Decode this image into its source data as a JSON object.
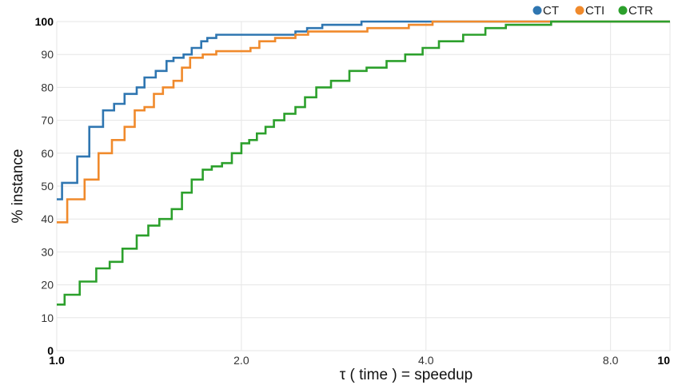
{
  "chart_data": {
    "type": "line",
    "title": "",
    "xlabel": "τ ( time ) = speedup",
    "ylabel": "% instance",
    "xscale": "log",
    "xlim": [
      1.0,
      10
    ],
    "ylim": [
      0,
      100
    ],
    "grid": true,
    "legend_position": "top-right",
    "x_ticks": [
      {
        "value": 1.0,
        "label": "1.0",
        "bold": true
      },
      {
        "value": 2.0,
        "label": "2.0",
        "bold": false
      },
      {
        "value": 4.0,
        "label": "4.0",
        "bold": false
      },
      {
        "value": 8.0,
        "label": "8.0",
        "bold": false
      },
      {
        "value": 10,
        "label": "10",
        "bold": true
      }
    ],
    "y_ticks": [
      {
        "value": 0,
        "label": "0",
        "bold": true
      },
      {
        "value": 10,
        "label": "10",
        "bold": false
      },
      {
        "value": 20,
        "label": "20",
        "bold": false
      },
      {
        "value": 30,
        "label": "30",
        "bold": false
      },
      {
        "value": 40,
        "label": "40",
        "bold": false
      },
      {
        "value": 50,
        "label": "50",
        "bold": false
      },
      {
        "value": 60,
        "label": "60",
        "bold": false
      },
      {
        "value": 70,
        "label": "70",
        "bold": false
      },
      {
        "value": 80,
        "label": "80",
        "bold": false
      },
      {
        "value": 90,
        "label": "90",
        "bold": false
      },
      {
        "value": 100,
        "label": "100",
        "bold": true
      }
    ],
    "series": [
      {
        "name": "CT",
        "color": "#2f76b1",
        "points": [
          [
            1.0,
            46
          ],
          [
            1.02,
            51
          ],
          [
            1.08,
            59
          ],
          [
            1.13,
            68
          ],
          [
            1.19,
            73
          ],
          [
            1.24,
            75
          ],
          [
            1.29,
            78
          ],
          [
            1.35,
            80
          ],
          [
            1.39,
            83
          ],
          [
            1.45,
            85
          ],
          [
            1.51,
            88
          ],
          [
            1.55,
            89
          ],
          [
            1.61,
            90
          ],
          [
            1.66,
            92
          ],
          [
            1.72,
            94
          ],
          [
            1.76,
            95
          ],
          [
            1.82,
            96
          ],
          [
            2.45,
            97
          ],
          [
            2.56,
            98
          ],
          [
            2.71,
            99
          ],
          [
            3.14,
            100
          ],
          [
            10,
            100
          ]
        ]
      },
      {
        "name": "CTI",
        "color": "#f08a2c",
        "points": [
          [
            1.0,
            39
          ],
          [
            1.04,
            46
          ],
          [
            1.11,
            52
          ],
          [
            1.17,
            60
          ],
          [
            1.23,
            64
          ],
          [
            1.29,
            68
          ],
          [
            1.34,
            73
          ],
          [
            1.39,
            74
          ],
          [
            1.44,
            78
          ],
          [
            1.49,
            80
          ],
          [
            1.55,
            82
          ],
          [
            1.6,
            86
          ],
          [
            1.65,
            89
          ],
          [
            1.73,
            90
          ],
          [
            1.82,
            91
          ],
          [
            2.07,
            92
          ],
          [
            2.14,
            94
          ],
          [
            2.27,
            95
          ],
          [
            2.45,
            96
          ],
          [
            2.57,
            97
          ],
          [
            3.21,
            98
          ],
          [
            3.75,
            99
          ],
          [
            4.1,
            100
          ],
          [
            10,
            100
          ]
        ]
      },
      {
        "name": "CTR",
        "color": "#2ca02c",
        "points": [
          [
            1.0,
            14
          ],
          [
            1.03,
            17
          ],
          [
            1.09,
            21
          ],
          [
            1.16,
            25
          ],
          [
            1.22,
            27
          ],
          [
            1.28,
            31
          ],
          [
            1.35,
            35
          ],
          [
            1.41,
            38
          ],
          [
            1.47,
            40
          ],
          [
            1.54,
            43
          ],
          [
            1.6,
            48
          ],
          [
            1.66,
            52
          ],
          [
            1.73,
            55
          ],
          [
            1.79,
            56
          ],
          [
            1.86,
            57
          ],
          [
            1.93,
            60
          ],
          [
            2.0,
            63
          ],
          [
            2.06,
            64
          ],
          [
            2.12,
            66
          ],
          [
            2.19,
            68
          ],
          [
            2.26,
            70
          ],
          [
            2.35,
            72
          ],
          [
            2.45,
            74
          ],
          [
            2.54,
            77
          ],
          [
            2.65,
            80
          ],
          [
            2.8,
            82
          ],
          [
            3.0,
            85
          ],
          [
            3.2,
            86
          ],
          [
            3.45,
            88
          ],
          [
            3.7,
            90
          ],
          [
            3.95,
            92
          ],
          [
            4.2,
            94
          ],
          [
            4.6,
            96
          ],
          [
            5.0,
            98
          ],
          [
            5.4,
            99
          ],
          [
            6.4,
            100
          ],
          [
            10,
            100
          ]
        ]
      }
    ]
  }
}
